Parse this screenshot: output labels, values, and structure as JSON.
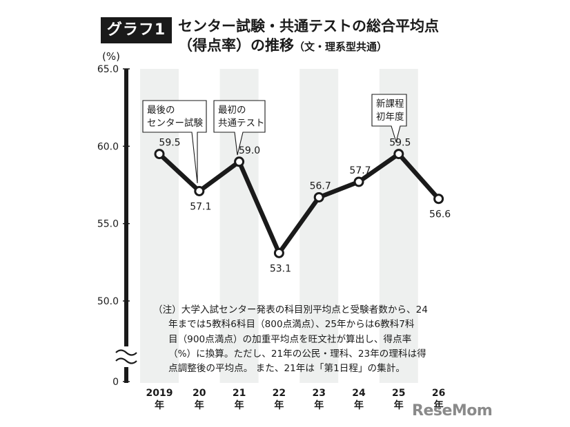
{
  "header": {
    "badge": "グラフ1",
    "title_line1": "センター試験・共通テストの総合平均点",
    "title_line2_main": "（得点率）の推移",
    "title_line2_sub": "（文・理系型共通）"
  },
  "chart_data": {
    "type": "line",
    "ylabel": "(%)",
    "ylim": [
      50,
      65
    ],
    "y_ticks": [
      "65.0",
      "60.0",
      "55.0",
      "50.0",
      "0"
    ],
    "axis_break": true,
    "categories": [
      {
        "year": "2019",
        "suffix": "年"
      },
      {
        "year": "20",
        "suffix": "年"
      },
      {
        "year": "21",
        "suffix": "年"
      },
      {
        "year": "22",
        "suffix": "年"
      },
      {
        "year": "23",
        "suffix": "年"
      },
      {
        "year": "24",
        "suffix": "年"
      },
      {
        "year": "25",
        "suffix": "年"
      },
      {
        "year": "26",
        "suffix": "年"
      }
    ],
    "series": [
      {
        "values": [
          59.5,
          57.1,
          59.0,
          53.1,
          56.7,
          57.7,
          59.5,
          56.6
        ],
        "labels": [
          "59.5",
          "57.1",
          "59.0",
          "53.1",
          "56.7",
          "57.7",
          "59.5",
          "56.6"
        ]
      }
    ],
    "annotations": [
      {
        "index": 1,
        "lines": [
          "最後の",
          "センター試験"
        ]
      },
      {
        "index": 2,
        "lines": [
          "最初の",
          "共通テスト"
        ]
      },
      {
        "index": 6,
        "lines": [
          "新課程",
          "初年度"
        ]
      }
    ],
    "grid": false,
    "colors": {
      "line": "#1a1a1a",
      "band": "#eef0ef"
    }
  },
  "note": {
    "lines": [
      "（注）大学入試センター発表の科目別平均点と受験者数から、24",
      "年までは5教科6科目（800点満点）、25年からは6教科7科",
      "目（900点満点）の加重平均点を旺文社が算出し、得点率",
      "（%）に換算。ただし、21年の公民・理科、23年の理科は得",
      "点調整後の平均点。 また、21年は「第1日程」の集計。"
    ]
  },
  "logo": {
    "text": "ReseMom"
  }
}
